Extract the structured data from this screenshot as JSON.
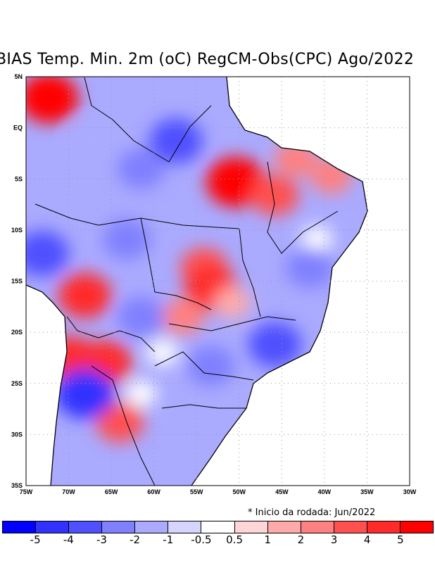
{
  "title": "BIAS Temp. Min. 2m (oC) RegCM-Obs(CPC) Ago/2022",
  "note": "* Inicio da rodada: Jun/2022",
  "chart_data": {
    "type": "heatmap",
    "title": "BIAS Temp. Min. 2m (oC) RegCM-Obs(CPC) Ago/2022",
    "xlim": [
      -75,
      -30
    ],
    "ylim": [
      -35,
      5
    ],
    "grid": true,
    "x_ticks": [
      "75W",
      "70W",
      "65W",
      "60W",
      "55W",
      "50W",
      "45W",
      "40W",
      "35W",
      "30W"
    ],
    "x_tick_values": [
      -75,
      -70,
      -65,
      -60,
      -55,
      -50,
      -45,
      -40,
      -35,
      -30
    ],
    "y_ticks": [
      "5N",
      "EQ",
      "5S",
      "10S",
      "15S",
      "20S",
      "25S",
      "30S",
      "35S"
    ],
    "y_tick_values": [
      5,
      0,
      -5,
      -10,
      -15,
      -20,
      -25,
      -30,
      -35
    ],
    "colorbar": {
      "labels": [
        "-5",
        "-4",
        "-3",
        "-2",
        "-1",
        "-0.5",
        "0.5",
        "1",
        "2",
        "3",
        "4",
        "5"
      ],
      "colors": [
        "#0000ff",
        "#3232ff",
        "#5050ff",
        "#8080ff",
        "#aaaaff",
        "#d5d5ff",
        "#ffffff",
        "#ffd5d5",
        "#ffaaaa",
        "#ff8080",
        "#ff5050",
        "#ff2a2a",
        "#ff0000"
      ]
    },
    "base_value": -1.5,
    "field_anomalies": [
      {
        "lon": -72.3,
        "lat": 2.9,
        "value": 5
      },
      {
        "lon": -50.4,
        "lat": -5.3,
        "value": 5
      },
      {
        "lon": -45.8,
        "lat": -6.6,
        "value": 3
      },
      {
        "lon": -54.1,
        "lat": -13.7,
        "value": 3
      },
      {
        "lon": -53.3,
        "lat": -15.7,
        "value": 4
      },
      {
        "lon": -43.4,
        "lat": -3,
        "value": 2
      },
      {
        "lon": -39.2,
        "lat": -4.7,
        "value": 2
      },
      {
        "lon": -68.1,
        "lat": -16.4,
        "value": 4
      },
      {
        "lon": -69.8,
        "lat": -22.6,
        "value": 4
      },
      {
        "lon": -65.7,
        "lat": -23,
        "value": 4
      },
      {
        "lon": -64,
        "lat": -28.8,
        "value": 3
      },
      {
        "lon": -56.6,
        "lat": -18.5,
        "value": 2
      },
      {
        "lon": -50.8,
        "lat": -17.1,
        "value": 1
      },
      {
        "lon": -40.9,
        "lat": -10.9,
        "value": 0
      },
      {
        "lon": -61.5,
        "lat": -26,
        "value": 0
      },
      {
        "lon": -59,
        "lat": -22,
        "value": 0
      },
      {
        "lon": -57.4,
        "lat": -1.3,
        "value": -4
      },
      {
        "lon": -61.5,
        "lat": -4,
        "value": -3
      },
      {
        "lon": -73.1,
        "lat": -12.3,
        "value": -4
      },
      {
        "lon": -63.2,
        "lat": -10.9,
        "value": -3
      },
      {
        "lon": -68.1,
        "lat": -26,
        "value": -5
      },
      {
        "lon": -45.8,
        "lat": -21.2,
        "value": -4
      },
      {
        "lon": -41.7,
        "lat": -13.7,
        "value": -3
      },
      {
        "lon": -53.3,
        "lat": -23.3,
        "value": -3
      },
      {
        "lon": -50.8,
        "lat": -27.4,
        "value": -2
      },
      {
        "lon": -67.3,
        "lat": -1.3,
        "value": -2
      },
      {
        "lon": -61.5,
        "lat": -18.5,
        "value": -3
      },
      {
        "lon": -54.9,
        "lat": -30.2,
        "value": -2
      }
    ]
  }
}
